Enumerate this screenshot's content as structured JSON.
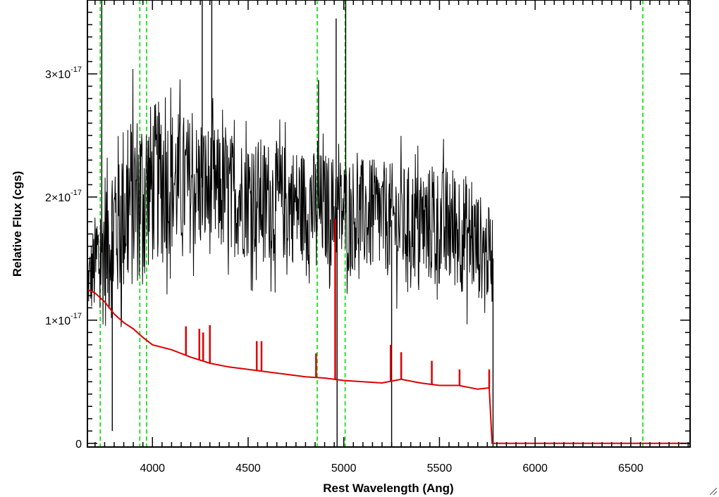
{
  "chart_data": {
    "type": "line",
    "xlabel": "Rest Wavelength (Ang)",
    "ylabel": "Relative Flux (cgs)",
    "xlim": [
      3660,
      6810
    ],
    "ylim": [
      -3e-19,
      3.6e-17
    ],
    "x_ticks": [
      {
        "value": 4000,
        "label": "4000"
      },
      {
        "value": 4500,
        "label": "4500"
      },
      {
        "value": 5000,
        "label": "5000"
      },
      {
        "value": 5500,
        "label": "5500"
      },
      {
        "value": 6000,
        "label": "6000"
      },
      {
        "value": 6500,
        "label": "6500"
      }
    ],
    "y_ticks": [
      {
        "value": 0,
        "label": "0",
        "exp": ""
      },
      {
        "value": 1e-17,
        "label": "1×10",
        "exp": "-17"
      },
      {
        "value": 2e-17,
        "label": "2×10",
        "exp": "-17"
      },
      {
        "value": 3e-17,
        "label": "3×10",
        "exp": "-17"
      }
    ],
    "reference_lines": {
      "color": "#00e000",
      "style": "dashed",
      "x": [
        3727,
        3934,
        3969,
        4861,
        5007,
        6563
      ]
    },
    "series": [
      {
        "role": "observed spectrum",
        "color": "#000000",
        "x_range": [
          3660,
          5780
        ],
        "upper_envelope": [
          [
            3660,
            1.6e-17
          ],
          [
            3750,
            2.5e-17
          ],
          [
            3850,
            2.9e-17
          ],
          [
            3950,
            3e-17
          ],
          [
            4050,
            3e-17
          ],
          [
            4200,
            2.85e-17
          ],
          [
            4400,
            2.7e-17
          ],
          [
            4600,
            2.65e-17
          ],
          [
            4800,
            2.55e-17
          ],
          [
            5000,
            2.5e-17
          ],
          [
            5200,
            2.45e-17
          ],
          [
            5400,
            2.4e-17
          ],
          [
            5600,
            2.45e-17
          ],
          [
            5780,
            2e-17
          ]
        ],
        "lower_envelope": [
          [
            3660,
            1e-17
          ],
          [
            3750,
            7e-18
          ],
          [
            3850,
            9e-18
          ],
          [
            3950,
            1.1e-17
          ],
          [
            4050,
            1.3e-17
          ],
          [
            4200,
            1.35e-17
          ],
          [
            4400,
            1.35e-17
          ],
          [
            4600,
            1.3e-17
          ],
          [
            4800,
            1.3e-17
          ],
          [
            5000,
            1.25e-17
          ],
          [
            5200,
            1.2e-17
          ],
          [
            5400,
            1.15e-17
          ],
          [
            5600,
            1.05e-17
          ],
          [
            5780,
            1e-17
          ]
        ],
        "spikes": [
          [
            3735,
            3.6e-17
          ],
          [
            3790,
            1e-18
          ],
          [
            4260,
            3.6e-17
          ],
          [
            4310,
            3.6e-17
          ],
          [
            4868,
            2.95e-17
          ],
          [
            4960,
            3.45e-17
          ],
          [
            4965,
            -3e-19
          ],
          [
            5010,
            3.6e-17
          ],
          [
            5250,
            -3e-19
          ],
          [
            5780,
            -3e-19
          ]
        ]
      },
      {
        "role": "model",
        "color": "#dd0000",
        "points": [
          [
            3660,
            1.25e-17
          ],
          [
            3700,
            1.22e-17
          ],
          [
            3750,
            1.15e-17
          ],
          [
            3800,
            1.05e-17
          ],
          [
            3850,
            9.8e-18
          ],
          [
            3900,
            9.3e-18
          ],
          [
            3950,
            8.6e-18
          ],
          [
            4000,
            8e-18
          ],
          [
            4100,
            7.6e-18
          ],
          [
            4200,
            7e-18
          ],
          [
            4300,
            6.5e-18
          ],
          [
            4400,
            6.2e-18
          ],
          [
            4500,
            6e-18
          ],
          [
            4600,
            5.8e-18
          ],
          [
            4700,
            5.6e-18
          ],
          [
            4800,
            5.4e-18
          ],
          [
            4900,
            5.3e-18
          ],
          [
            5000,
            5.1e-18
          ],
          [
            5100,
            5e-18
          ],
          [
            5200,
            4.9e-18
          ],
          [
            5300,
            5.2e-18
          ],
          [
            5400,
            4.9e-18
          ],
          [
            5500,
            4.7e-18
          ],
          [
            5600,
            4.7e-18
          ],
          [
            5700,
            4.4e-18
          ],
          [
            5760,
            4.5e-18
          ],
          [
            5775,
            0.0
          ],
          [
            6810,
            0.0
          ]
        ],
        "spikes": [
          [
            4175,
            9.5e-18
          ],
          [
            4245,
            9.3e-18
          ],
          [
            4265,
            9e-18
          ],
          [
            4300,
            9.6e-18
          ],
          [
            4545,
            8.3e-18
          ],
          [
            4570,
            8.3e-18
          ],
          [
            4855,
            7.3e-18
          ],
          [
            4955,
            1.82e-17
          ],
          [
            5245,
            8e-18
          ],
          [
            5300,
            7.4e-18
          ],
          [
            5460,
            6.7e-18
          ],
          [
            5605,
            6e-18
          ],
          [
            5760,
            6e-18
          ]
        ]
      }
    ]
  }
}
